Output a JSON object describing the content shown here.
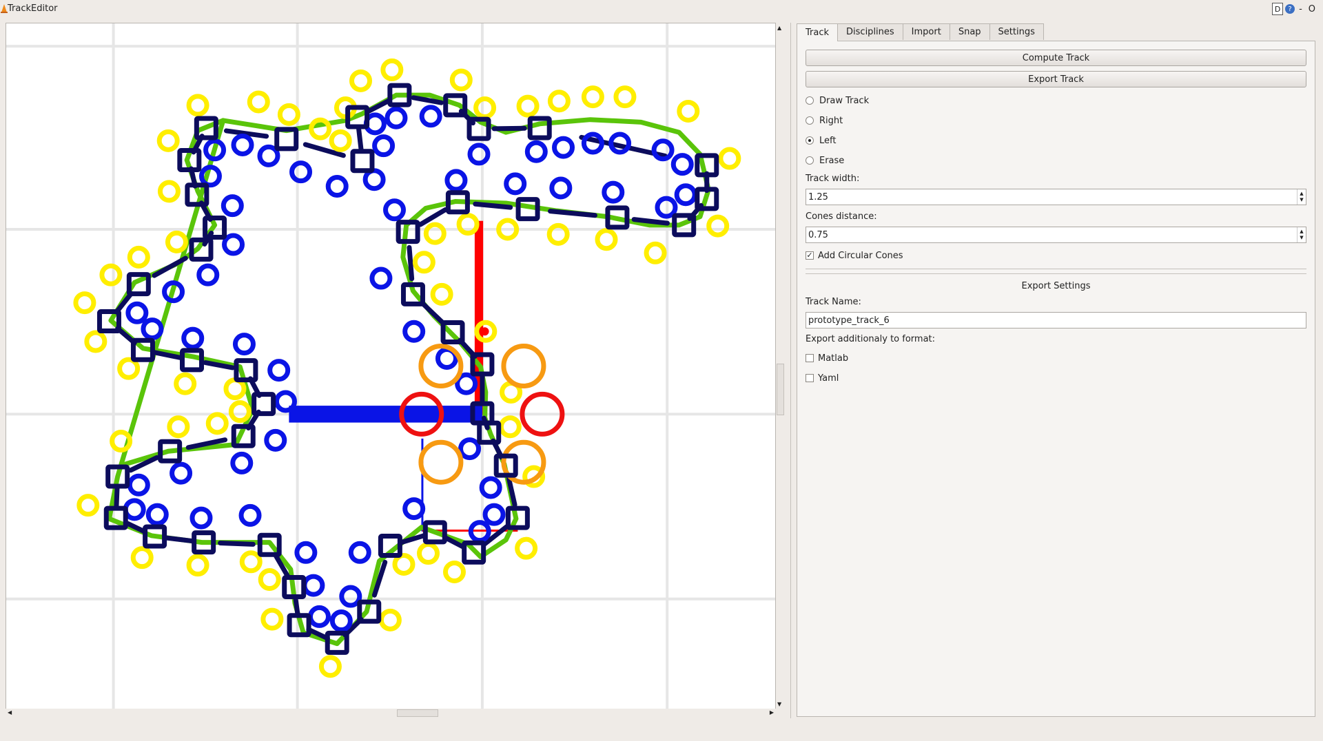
{
  "window": {
    "title": "TrackEditor",
    "btn_d": "D",
    "btn_help": "?",
    "btn_min": "-",
    "btn_max": "O"
  },
  "tabs": [
    {
      "label": "Track",
      "active": true
    },
    {
      "label": "Disciplines",
      "active": false
    },
    {
      "label": "Import",
      "active": false
    },
    {
      "label": "Snap",
      "active": false
    },
    {
      "label": "Settings",
      "active": false
    }
  ],
  "track": {
    "compute_label": "Compute Track",
    "export_label": "Export Track",
    "modes": [
      {
        "label": "Draw Track",
        "checked": false
      },
      {
        "label": "Right",
        "checked": false
      },
      {
        "label": "Left",
        "checked": true
      },
      {
        "label": "Erase",
        "checked": false
      }
    ],
    "track_width_label": "Track width:",
    "track_width_value": "1.25",
    "cones_distance_label": "Cones distance:",
    "cones_distance_value": "0.75",
    "add_circular_cones_label": "Add Circular Cones",
    "add_circular_cones_checked": true
  },
  "export_settings": {
    "title": "Export Settings",
    "track_name_label": "Track Name:",
    "track_name_value": "prototype_track_6",
    "format_label": "Export additionaly to format:",
    "formats": [
      {
        "label": "Matlab",
        "checked": false
      },
      {
        "label": "Yaml",
        "checked": false
      }
    ]
  },
  "colors": {
    "left_cone": "#ffee00",
    "right_cone": "#0a14e6",
    "track_line": "#5ac40a",
    "control_point": "#0c0c5c",
    "big_orange": "#f79a12",
    "big_red": "#ee1111"
  }
}
